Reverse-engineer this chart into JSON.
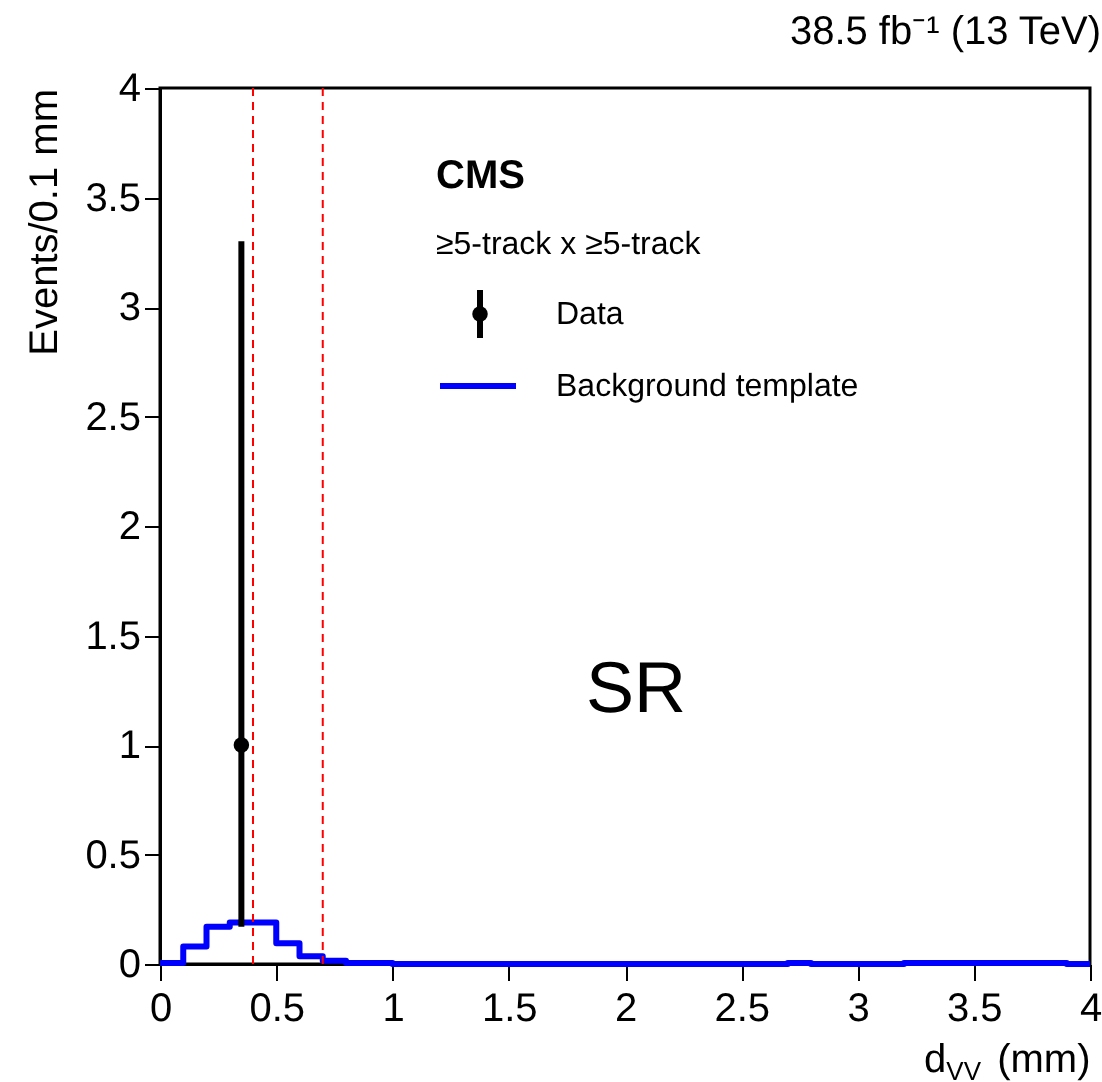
{
  "chart_data": {
    "type": "histogram",
    "title": "38.5 fb⁻¹ (13 TeV)",
    "xlabel": "d$_{VV}$ (mm)",
    "ylabel": "Events/0.1 mm",
    "annotations": [
      "CMS",
      "≥5-track x ≥5-track",
      "SR"
    ],
    "bins": [
      0,
      0.1,
      0.2,
      0.3,
      0.4,
      0.5,
      0.6,
      0.7,
      0.8,
      0.9,
      1.0,
      1.1,
      1.2,
      1.3,
      1.4,
      1.5,
      1.6,
      1.7,
      1.8,
      1.9,
      2.0,
      2.1,
      2.2,
      2.3,
      2.4,
      2.5,
      2.6,
      2.7,
      2.8,
      2.9,
      3.0,
      3.1,
      3.2,
      3.3,
      3.4,
      3.5,
      3.6,
      3.7,
      3.8,
      3.9,
      4.0
    ],
    "series": [
      {
        "name": "Data",
        "type": "scatter",
        "color": "#000000",
        "x": [
          0.35
        ],
        "values": [
          1
        ],
        "errors": [
          [
            0.17,
            3.3
          ]
        ]
      },
      {
        "name": "Background template",
        "color": "#0000ff",
        "values": [
          0.005,
          0.08,
          0.17,
          0.19,
          0.19,
          0.095,
          0.035,
          0.015,
          0.005,
          0.005,
          0,
          0,
          0,
          0,
          0,
          0,
          0,
          0,
          0,
          0,
          0,
          0,
          0,
          0,
          0,
          0,
          0,
          0.005,
          0,
          0,
          0,
          0,
          0.005,
          0.005,
          0.005,
          0.005,
          0.005,
          0.005,
          0.005,
          0
        ]
      }
    ],
    "ref_lines": [
      {
        "axis": "x",
        "value": 0.4,
        "color": "#ff0000",
        "line_style": "dashed"
      },
      {
        "axis": "x",
        "value": 0.7,
        "color": "#ff0000",
        "line_style": "dashed"
      }
    ],
    "xlim": [
      0,
      4
    ],
    "ylim": [
      0,
      4
    ],
    "xticks": [
      0,
      0.5,
      1,
      1.5,
      2,
      2.5,
      3,
      3.5,
      4
    ],
    "yticks": [
      0,
      0.5,
      1,
      1.5,
      2,
      2.5,
      3,
      3.5,
      4
    ],
    "grid": false,
    "legend": "top",
    "marker": "circle"
  }
}
